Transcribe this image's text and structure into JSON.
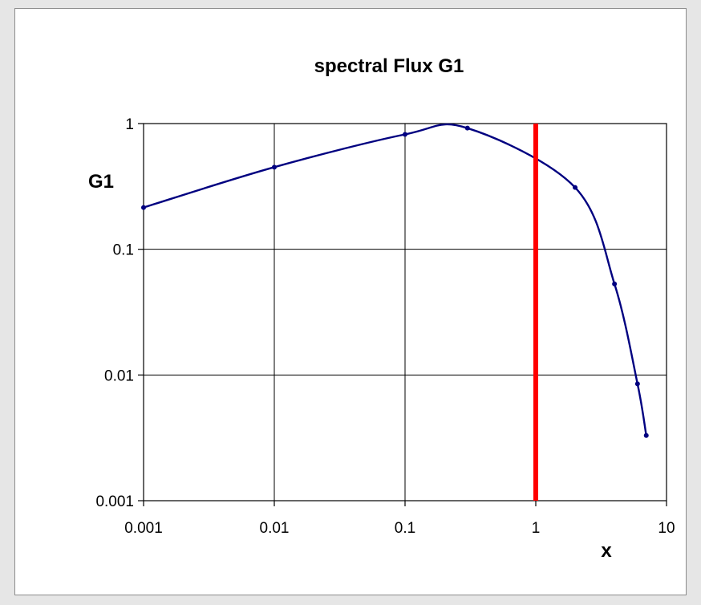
{
  "chart_data": {
    "type": "line",
    "title": "spectral Flux G1",
    "xlabel": "x",
    "ylabel": "G1",
    "x_scale": "log",
    "y_scale": "log",
    "xlim": [
      0.001,
      10
    ],
    "ylim": [
      0.001,
      1
    ],
    "grid": true,
    "legend": "none",
    "x_tick_labels": [
      "0.001",
      "0.01",
      "0.1",
      "1",
      "10"
    ],
    "y_tick_labels": [
      "0.001",
      "0.01",
      "0.1",
      "1"
    ],
    "x_ticks": [
      0.001,
      0.01,
      0.1,
      1,
      10
    ],
    "y_ticks": [
      0.001,
      0.01,
      0.1,
      1
    ],
    "series": [
      {
        "color": "#000080",
        "points": [
          {
            "x": 0.001,
            "y": 0.215
          },
          {
            "x": 0.01,
            "y": 0.45
          },
          {
            "x": 0.1,
            "y": 0.82
          },
          {
            "x": 0.3,
            "y": 0.92
          },
          {
            "x": 2,
            "y": 0.31
          },
          {
            "x": 4,
            "y": 0.053
          },
          {
            "x": 6,
            "y": 0.0085
          },
          {
            "x": 7,
            "y": 0.0033
          }
        ]
      }
    ],
    "vertical_line": {
      "x": 1,
      "color": "#ff0000"
    }
  }
}
